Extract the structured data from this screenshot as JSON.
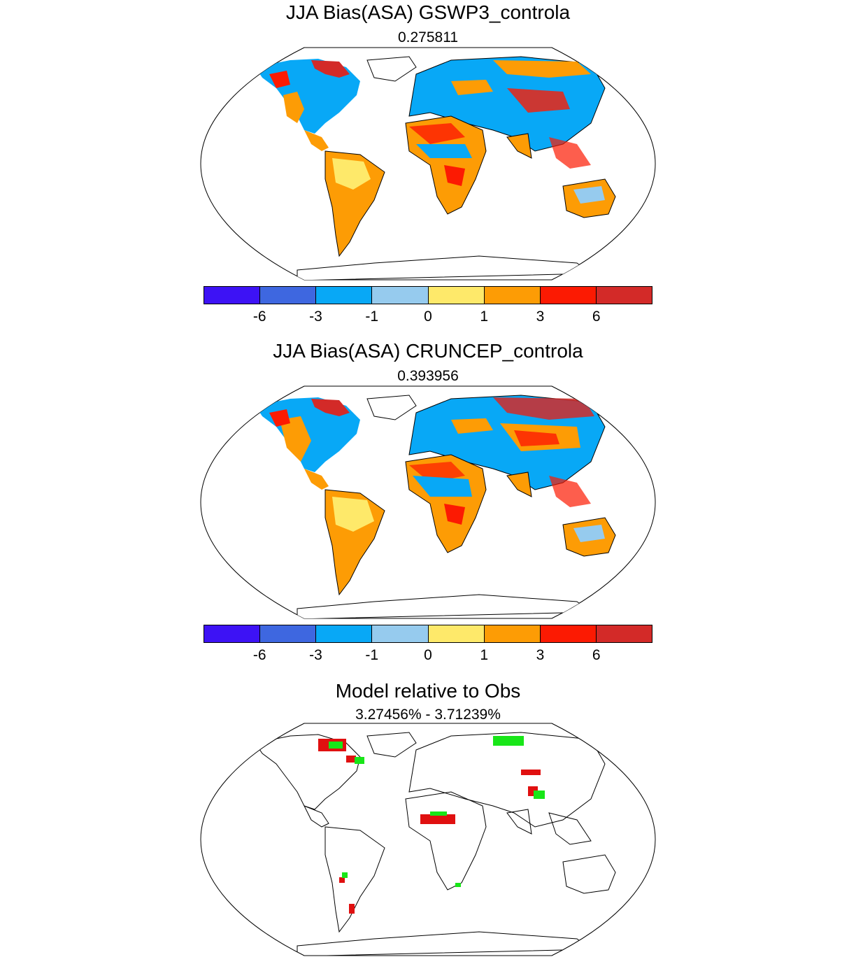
{
  "panels": [
    {
      "title": "JJA Bias(ASA) GSWP3_controla",
      "subtitle": "0.275811"
    },
    {
      "title": "JJA Bias(ASA) CRUNCEP_controla",
      "subtitle": "0.393956"
    },
    {
      "title": "Model relative to Obs",
      "subtitle": "3.27456% - 3.71239%"
    }
  ],
  "colorbar": {
    "colors": [
      "#3d12f5",
      "#3e67e0",
      "#08a8f6",
      "#96cbee",
      "#fee96a",
      "#fd9c05",
      "#fc1a02",
      "#d32a28"
    ],
    "ticks": [
      "-6",
      "-3",
      "-1",
      "0",
      "1",
      "3",
      "6"
    ]
  },
  "comparison_colors": {
    "better": "#18e618",
    "worse": "#e01010"
  }
}
